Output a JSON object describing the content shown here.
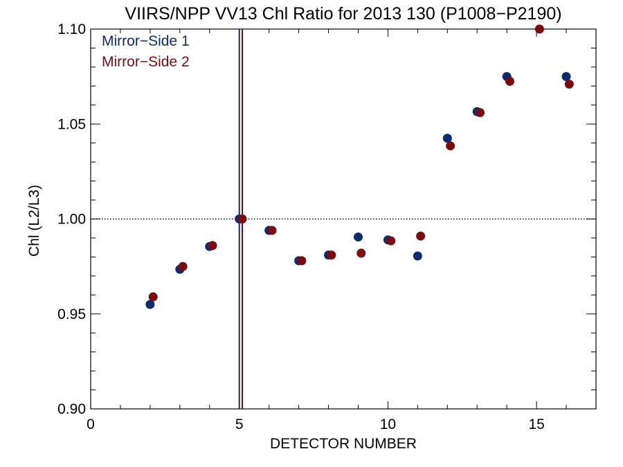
{
  "chart_data": {
    "type": "scatter",
    "title": "VIIRS/NPP VV13 Chl Ratio for 2013 130 (P1008−P2190)",
    "xlabel": "DETECTOR NUMBER",
    "ylabel": "Chl (L2/L3)",
    "xlim": [
      0,
      17
    ],
    "ylim": [
      0.9,
      1.1
    ],
    "xticks": [
      0,
      5,
      10,
      15
    ],
    "xtick_labels": [
      "0",
      "5",
      "10",
      "15"
    ],
    "yticks": [
      0.9,
      0.95,
      1.0,
      1.05,
      1.1
    ],
    "ytick_labels": [
      "0.90",
      "0.95",
      "1.00",
      "1.05",
      "1.10"
    ],
    "reference_line": 1.0,
    "legend_position": "top-left",
    "series": [
      {
        "name": "Mirror−Side 1",
        "color": "#0d2b6e",
        "vline": 5.0,
        "x": [
          2,
          3,
          4,
          5,
          6,
          7,
          8,
          9,
          10,
          11,
          12,
          13,
          14,
          16
        ],
        "y": [
          0.955,
          0.9735,
          0.9855,
          1.0,
          0.994,
          0.978,
          0.981,
          0.9905,
          0.989,
          0.9805,
          1.0425,
          1.0565,
          1.075,
          1.075
        ]
      },
      {
        "name": "Mirror−Side 2",
        "color": "#7a0c10",
        "vline": 5.1,
        "x": [
          2.1,
          3.1,
          4.1,
          5.1,
          6.1,
          7.1,
          8.1,
          9.1,
          10.1,
          11.1,
          12.1,
          13.1,
          14.1,
          15.1,
          16.1
        ],
        "y": [
          0.959,
          0.975,
          0.986,
          1.0,
          0.994,
          0.978,
          0.981,
          0.982,
          0.9885,
          0.991,
          1.0385,
          1.056,
          1.0725,
          1.1015,
          1.071
        ]
      }
    ]
  }
}
